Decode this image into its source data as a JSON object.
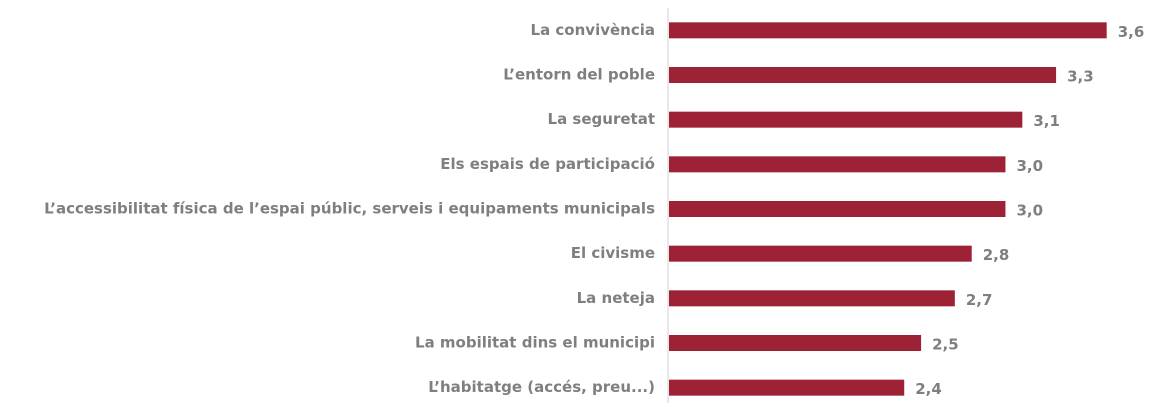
{
  "chart_data": {
    "type": "hbar",
    "categories": [
      "La convivència",
      "L’entorn del poble",
      "La seguretat",
      "Els espais de participació",
      "L’accessibilitat física de l’espai públic, serveis i equipaments municipals",
      "El civisme",
      "La neteja",
      "La mobilitat dins el municipi",
      "L’habitatge (accés, preu...)"
    ],
    "values": [
      3.6,
      3.3,
      3.1,
      3.0,
      3.0,
      2.8,
      2.7,
      2.5,
      2.4
    ],
    "value_labels": [
      "3,6",
      "3,3",
      "3,1",
      "3,0",
      "3,0",
      "2,8",
      "2,7",
      "2,5",
      "2,4"
    ],
    "color": "#9e2236",
    "xlim": [
      1,
      3.75
    ]
  }
}
